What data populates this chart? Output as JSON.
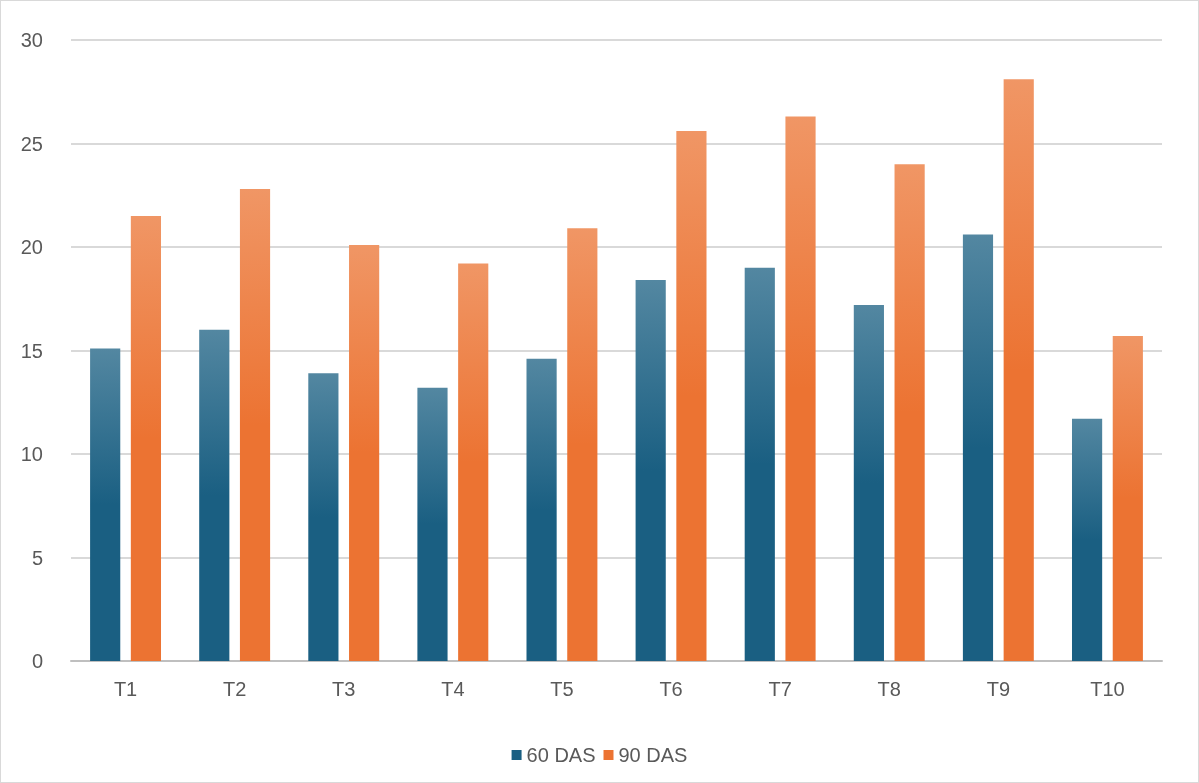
{
  "chart_data": {
    "type": "bar",
    "categories": [
      "T1",
      "T2",
      "T3",
      "T4",
      "T5",
      "T6",
      "T7",
      "T8",
      "T9",
      "T10"
    ],
    "series": [
      {
        "name": "60 DAS",
        "color": "#1a5f82",
        "values": [
          15.1,
          16.0,
          13.9,
          13.2,
          14.6,
          18.4,
          19.0,
          17.2,
          20.6,
          11.7
        ]
      },
      {
        "name": "90 DAS",
        "color": "#ec7332",
        "values": [
          21.5,
          22.8,
          20.1,
          19.2,
          20.9,
          25.6,
          26.3,
          24.0,
          28.1,
          15.7
        ]
      }
    ],
    "ylim": [
      0,
      30
    ],
    "yticks": [
      0,
      5,
      10,
      15,
      20,
      25,
      30
    ],
    "grid": "y",
    "legend": "bottom"
  }
}
